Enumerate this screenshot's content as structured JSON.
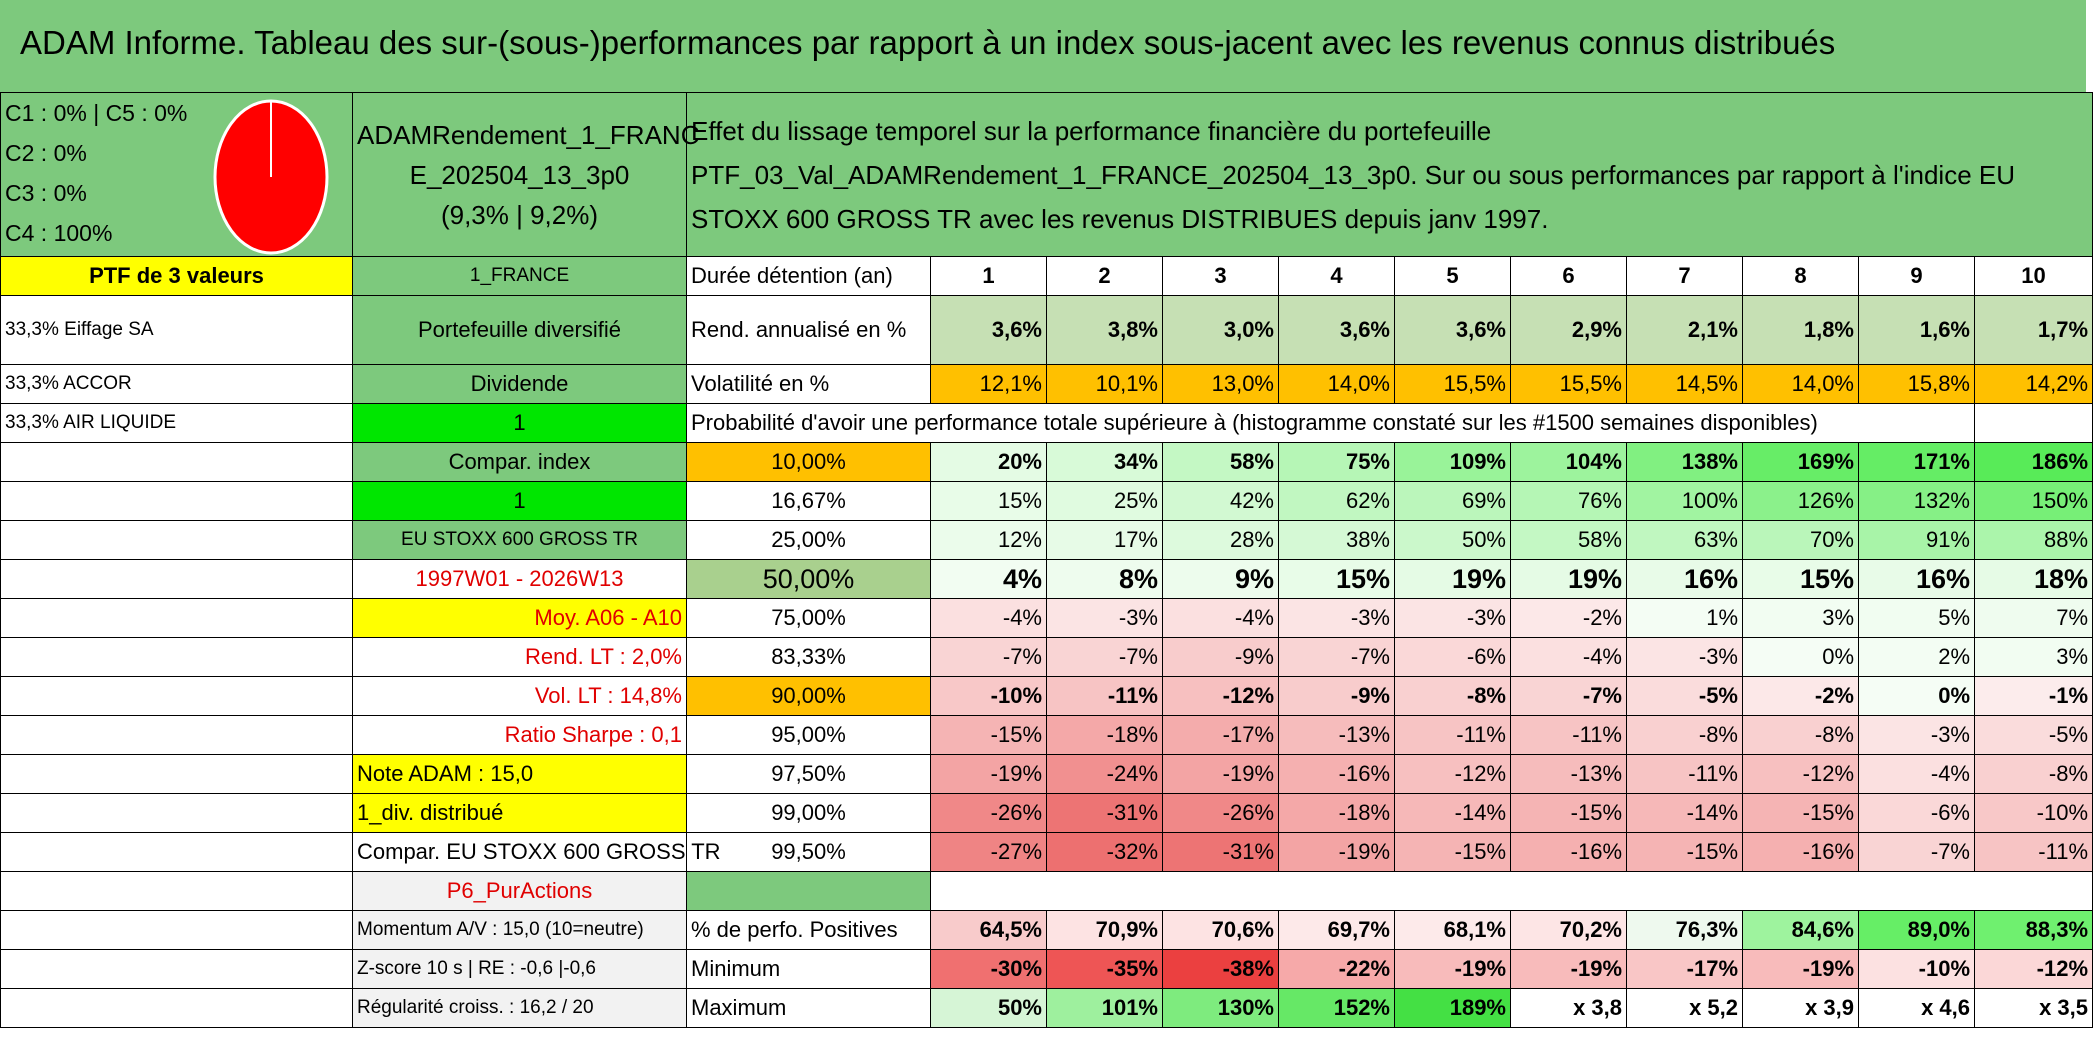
{
  "title": "ADAM Informe. Tableau des sur-(sous-)performances par rapport à un index sous-jacent avec les revenus connus distribués",
  "allocation": {
    "lines": [
      "C1 : 0% | C5 : 0%",
      "C2 : 0%",
      "C3 : 0%",
      "C4 : 100%"
    ],
    "pie_color": "#ff0000",
    "pie_share_c4": 1.0
  },
  "portfolio": {
    "name_line1": "ADAMRendement_1_FRANC",
    "name_line2": "E_202504_13_3p0",
    "name_line3": "(9,3% | 9,2%)",
    "description": "Effet du lissage temporel sur la performance financière du portefeuille PTF_03_Val_ADAMRendement_1_FRANCE_202504_13_3p0. Sur ou sous performances par rapport à l'indice EU STOXX 600 GROSS TR avec les revenus DISTRIBUES depuis janv 1997.",
    "header_left": "PTF de 3 valeurs",
    "header_mid": "1_FRANCE",
    "duration_label": "Durée détention (an)",
    "years": [
      "1",
      "2",
      "3",
      "4",
      "5",
      "6",
      "7",
      "8",
      "9",
      "10"
    ]
  },
  "holdings": [
    "33,3% Eiffage SA",
    "33,3% ACCOR",
    "33,3% AIR LIQUIDE"
  ],
  "side": {
    "diversified": "Portefeuille diversifié",
    "dividend": "Dividende",
    "one_a": "1",
    "compar_index": "Compar. index",
    "one_b": "1",
    "index_name": "EU STOXX 600 GROSS TR",
    "period": "1997W01 - 2026W13",
    "moy": "Moy. A06 - A10",
    "rend_lt": "Rend. LT : 2,0%",
    "vol_lt": "Vol. LT : 14,8%",
    "sharpe": "Ratio Sharpe : 0,1",
    "note": "Note ADAM : 15,0",
    "div": "1_div. distribué",
    "compar": "Compar. EU STOXX 600 GROSS TR",
    "p6": "P6_PurActions",
    "momentum": "Momentum A/V : 15,0 (10=neutre)",
    "zscore": "Z-score 10 s | RE : -0,6 |-0,6",
    "regularite": "Régularité croiss. : 16,2 / 20"
  },
  "metrics": {
    "rend_label": "Rend. annualisé en %",
    "rend": [
      "3,6%",
      "3,8%",
      "3,0%",
      "3,6%",
      "3,6%",
      "2,9%",
      "2,1%",
      "1,8%",
      "1,6%",
      "1,7%"
    ],
    "vol_label": "Volatilité en %",
    "vol": [
      "12,1%",
      "10,1%",
      "13,0%",
      "14,0%",
      "15,5%",
      "15,5%",
      "14,5%",
      "14,0%",
      "15,8%",
      "14,2%"
    ],
    "prob_label": "Probabilité d'avoir une performance totale supérieure à (histogramme constaté sur les #1500 semaines disponibles)"
  },
  "quantiles": [
    {
      "q": "10,00%",
      "vals": [
        "20%",
        "34%",
        "58%",
        "75%",
        "109%",
        "104%",
        "138%",
        "169%",
        "171%",
        "186%"
      ],
      "nums": [
        20,
        34,
        58,
        75,
        109,
        104,
        138,
        169,
        171,
        186
      ]
    },
    {
      "q": "16,67%",
      "vals": [
        "15%",
        "25%",
        "42%",
        "62%",
        "69%",
        "76%",
        "100%",
        "126%",
        "132%",
        "150%"
      ],
      "nums": [
        15,
        25,
        42,
        62,
        69,
        76,
        100,
        126,
        132,
        150
      ]
    },
    {
      "q": "25,00%",
      "vals": [
        "12%",
        "17%",
        "28%",
        "38%",
        "50%",
        "58%",
        "63%",
        "70%",
        "91%",
        "88%"
      ],
      "nums": [
        12,
        17,
        28,
        38,
        50,
        58,
        63,
        70,
        91,
        88
      ]
    },
    {
      "q": "50,00%",
      "vals": [
        "4%",
        "8%",
        "9%",
        "15%",
        "19%",
        "19%",
        "16%",
        "15%",
        "16%",
        "18%"
      ],
      "nums": [
        4,
        8,
        9,
        15,
        19,
        19,
        16,
        15,
        16,
        18
      ]
    },
    {
      "q": "75,00%",
      "vals": [
        "-4%",
        "-3%",
        "-4%",
        "-3%",
        "-3%",
        "-2%",
        "1%",
        "3%",
        "5%",
        "7%"
      ],
      "nums": [
        -4,
        -3,
        -4,
        -3,
        -3,
        -2,
        1,
        3,
        5,
        7
      ]
    },
    {
      "q": "83,33%",
      "vals": [
        "-7%",
        "-7%",
        "-9%",
        "-7%",
        "-6%",
        "-4%",
        "-3%",
        "0%",
        "2%",
        "3%"
      ],
      "nums": [
        -7,
        -7,
        -9,
        -7,
        -6,
        -4,
        -3,
        0,
        2,
        3
      ]
    },
    {
      "q": "90,00%",
      "vals": [
        "-10%",
        "-11%",
        "-12%",
        "-9%",
        "-8%",
        "-7%",
        "-5%",
        "-2%",
        "0%",
        "-1%"
      ],
      "nums": [
        -10,
        -11,
        -12,
        -9,
        -8,
        -7,
        -5,
        -2,
        0,
        -1
      ]
    },
    {
      "q": "95,00%",
      "vals": [
        "-15%",
        "-18%",
        "-17%",
        "-13%",
        "-11%",
        "-11%",
        "-8%",
        "-8%",
        "-3%",
        "-5%"
      ],
      "nums": [
        -15,
        -18,
        -17,
        -13,
        -11,
        -11,
        -8,
        -8,
        -3,
        -5
      ]
    },
    {
      "q": "97,50%",
      "vals": [
        "-19%",
        "-24%",
        "-19%",
        "-16%",
        "-12%",
        "-13%",
        "-11%",
        "-12%",
        "-4%",
        "-8%"
      ],
      "nums": [
        -19,
        -24,
        -19,
        -16,
        -12,
        -13,
        -11,
        -12,
        -4,
        -8
      ]
    },
    {
      "q": "99,00%",
      "vals": [
        "-26%",
        "-31%",
        "-26%",
        "-18%",
        "-14%",
        "-15%",
        "-14%",
        "-15%",
        "-6%",
        "-10%"
      ],
      "nums": [
        -26,
        -31,
        -26,
        -18,
        -14,
        -15,
        -14,
        -15,
        -6,
        -10
      ]
    },
    {
      "q": "99,50%",
      "vals": [
        "-27%",
        "-32%",
        "-31%",
        "-19%",
        "-15%",
        "-16%",
        "-15%",
        "-16%",
        "-7%",
        "-11%"
      ],
      "nums": [
        -27,
        -32,
        -31,
        -19,
        -15,
        -16,
        -15,
        -16,
        -7,
        -11
      ]
    }
  ],
  "bottom": {
    "pos_label": "% de perfo. Positives",
    "pos": [
      "64,5%",
      "70,9%",
      "70,6%",
      "69,7%",
      "68,1%",
      "70,2%",
      "76,3%",
      "84,6%",
      "89,0%",
      "88,3%"
    ],
    "min_label": "Minimum",
    "min": [
      "-30%",
      "-35%",
      "-38%",
      "-22%",
      "-19%",
      "-19%",
      "-17%",
      "-19%",
      "-10%",
      "-12%"
    ],
    "max_label": "Maximum",
    "max": [
      "50%",
      "101%",
      "130%",
      "152%",
      "189%",
      "x 3,8",
      "x 5,2",
      "x 3,9",
      "x 4,6",
      "x 3,5"
    ]
  }
}
